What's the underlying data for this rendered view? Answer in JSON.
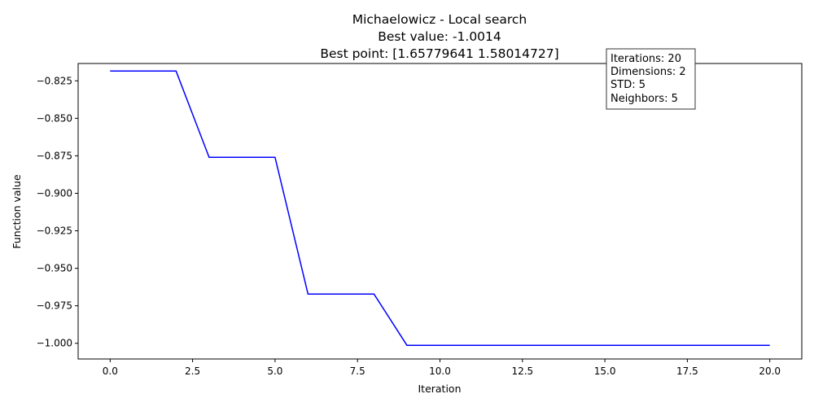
{
  "chart_data": {
    "type": "line",
    "title_lines": [
      "Michaelowicz - Local search",
      "Best value: -1.0014",
      "Best point: [1.65779641 1.58014727]"
    ],
    "xlabel": "Iteration",
    "ylabel": "Function value",
    "xlim": [
      -0.97,
      20.97
    ],
    "ylim": [
      -1.01045,
      -0.81345
    ],
    "x_ticks": [
      0.0,
      2.5,
      5.0,
      7.5,
      10.0,
      12.5,
      15.0,
      17.5,
      20.0
    ],
    "x_tick_labels": [
      "0.0",
      "2.5",
      "5.0",
      "7.5",
      "10.0",
      "12.5",
      "15.0",
      "17.5",
      "20.0"
    ],
    "y_ticks": [
      -0.825,
      -0.85,
      -0.875,
      -0.9,
      -0.925,
      -0.95,
      -0.975,
      -1.0
    ],
    "y_tick_labels": [
      "−0.825",
      "−0.850",
      "−0.875",
      "−0.900",
      "−0.925",
      "−0.950",
      "−0.975",
      "−1.000"
    ],
    "grid": false,
    "series": [
      {
        "color": "#0000ff",
        "x": [
          0,
          1,
          2,
          3,
          4,
          5,
          6,
          7,
          8,
          9,
          10,
          11,
          12,
          13,
          14,
          15,
          16,
          17,
          20
        ],
        "y": [
          -0.8185,
          -0.8185,
          -0.8185,
          -0.876,
          -0.876,
          -0.876,
          -0.9672,
          -0.9672,
          -0.9672,
          -1.0014,
          -1.0014,
          -1.0014,
          -1.0014,
          -1.0014,
          -1.0014,
          -1.0014,
          -1.0014,
          -1.0014,
          -1.0014
        ]
      }
    ],
    "info_box_lines": [
      "Iterations: 20",
      "Dimensions: 2",
      "STD: 5",
      "Neighbors: 5"
    ]
  }
}
